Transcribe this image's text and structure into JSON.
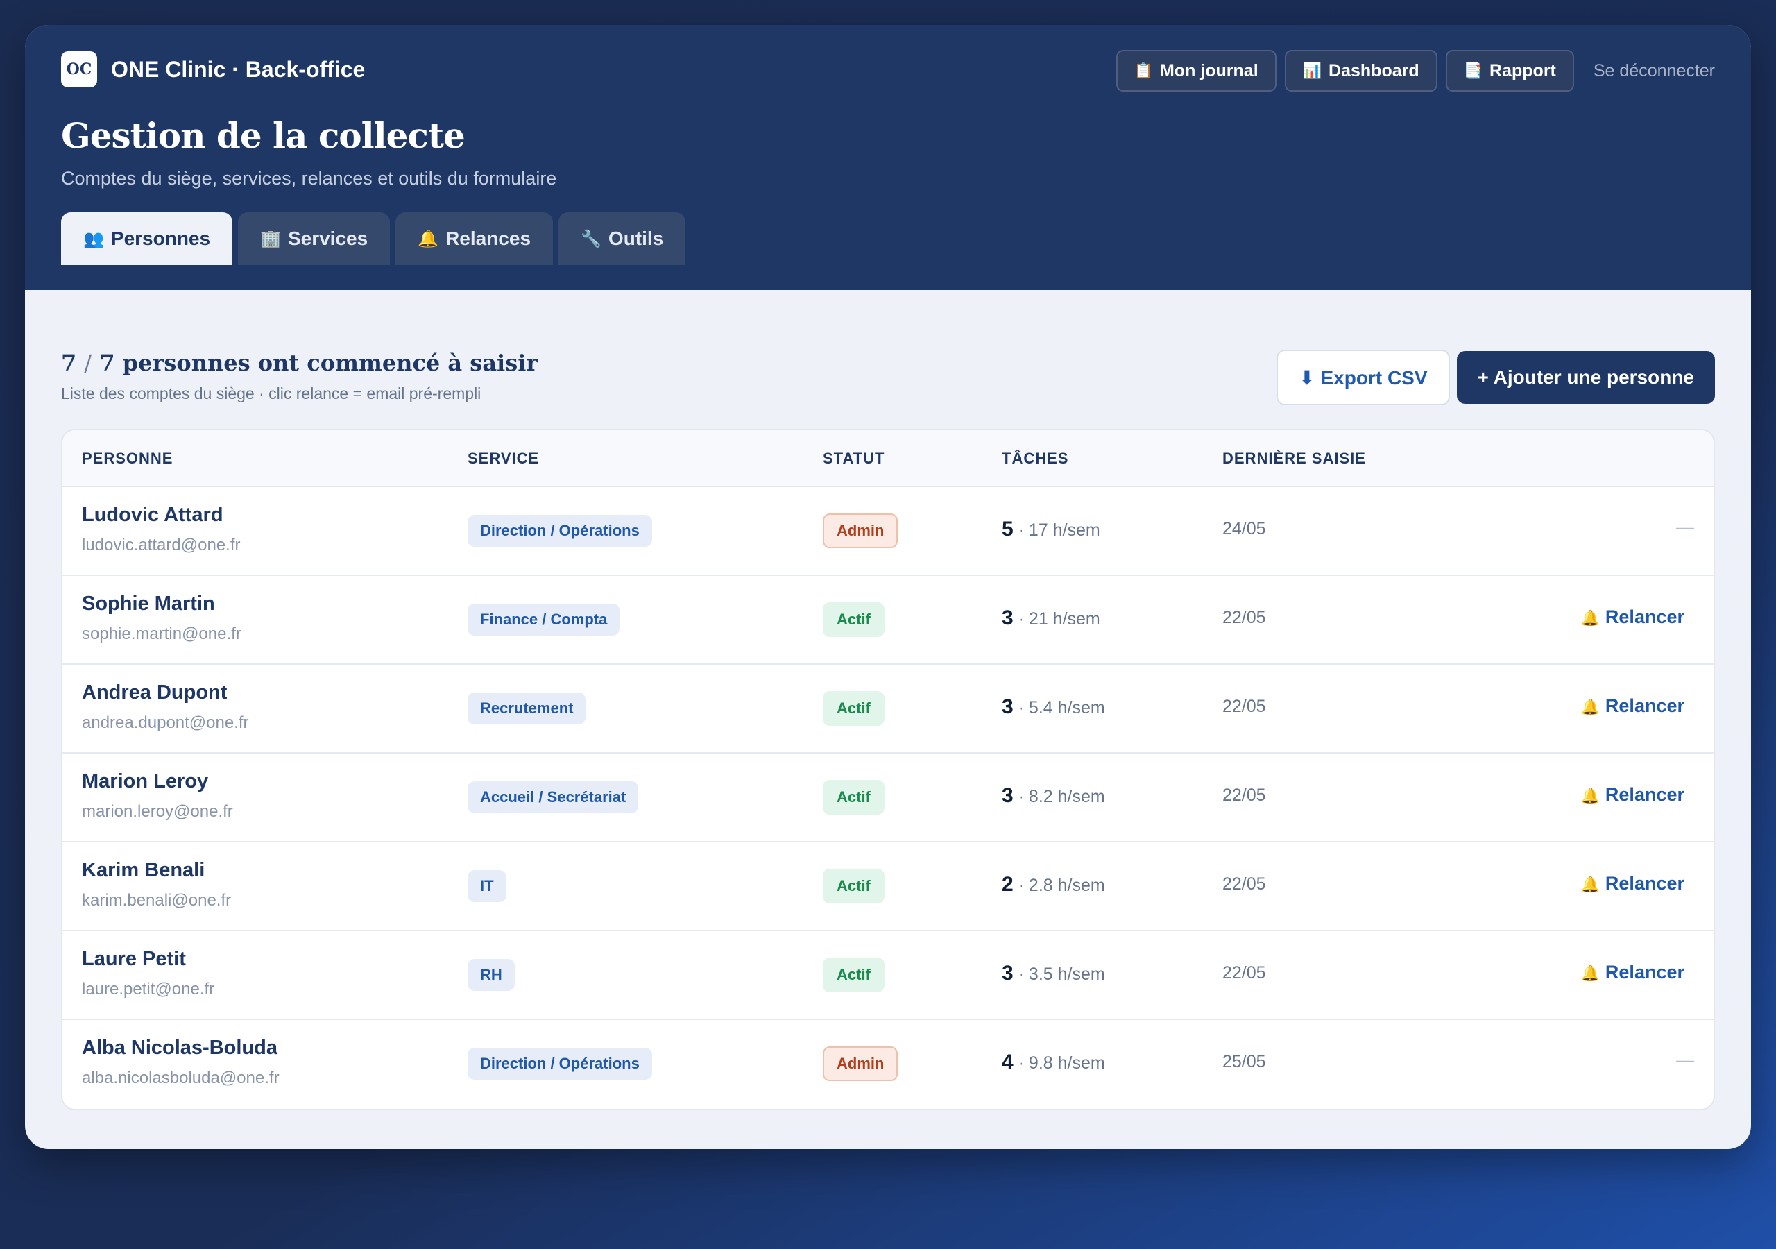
{
  "app": {
    "logo_text": "OC",
    "name": "ONE Clinic · Back-office"
  },
  "nav": {
    "journal": {
      "icon": "clipboard-icon",
      "label": "Mon journal"
    },
    "dashboard": {
      "icon": "bar-chart-icon",
      "label": "Dashboard"
    },
    "rapport": {
      "icon": "document-icon",
      "label": "Rapport"
    },
    "logout": "Se déconnecter"
  },
  "page": {
    "title": "Gestion de la collecte",
    "subtitle": "Comptes du siège, services, relances et outils du formulaire"
  },
  "tabs": [
    {
      "icon": "people-icon",
      "label": "Personnes",
      "active": true
    },
    {
      "icon": "building-icon",
      "label": "Services",
      "active": false
    },
    {
      "icon": "bell-icon",
      "label": "Relances",
      "active": false
    },
    {
      "icon": "wrench-icon",
      "label": "Outils",
      "active": false
    }
  ],
  "summary": {
    "started": "7",
    "separator": "/",
    "total": "7",
    "label": "personnes ont commencé à saisir",
    "subtitle": "Liste des comptes du siège · clic relance = email pré-rempli"
  },
  "actions": {
    "export": "⬇ Export CSV",
    "add": "+ Ajouter une personne"
  },
  "table": {
    "headers": {
      "person": "PERSONNE",
      "service": "SERVICE",
      "status": "STATUT",
      "tasks": "TÂCHES",
      "last": "DERNIÈRE SAISIE"
    },
    "relancer_label": "Relancer",
    "dash": "—",
    "rows": [
      {
        "name": "Ludovic Attard",
        "email": "ludovic.attard@one.fr",
        "service": "Direction / Opérations",
        "status": "Admin",
        "tasks": "5",
        "hours": "· 17 h/sem",
        "last": "24/05"
      },
      {
        "name": "Sophie Martin",
        "email": "sophie.martin@one.fr",
        "service": "Finance / Compta",
        "status": "Actif",
        "tasks": "3",
        "hours": "· 21 h/sem",
        "last": "22/05"
      },
      {
        "name": "Andrea Dupont",
        "email": "andrea.dupont@one.fr",
        "service": "Recrutement",
        "status": "Actif",
        "tasks": "3",
        "hours": "· 5.4 h/sem",
        "last": "22/05"
      },
      {
        "name": "Marion Leroy",
        "email": "marion.leroy@one.fr",
        "service": "Accueil / Secrétariat",
        "status": "Actif",
        "tasks": "3",
        "hours": "· 8.2 h/sem",
        "last": "22/05"
      },
      {
        "name": "Karim Benali",
        "email": "karim.benali@one.fr",
        "service": "IT",
        "status": "Actif",
        "tasks": "2",
        "hours": "· 2.8 h/sem",
        "last": "22/05"
      },
      {
        "name": "Laure Petit",
        "email": "laure.petit@one.fr",
        "service": "RH",
        "status": "Actif",
        "tasks": "3",
        "hours": "· 3.5 h/sem",
        "last": "22/05"
      },
      {
        "name": "Alba Nicolas-Boluda",
        "email": "alba.nicolasboluda@one.fr",
        "service": "Direction / Opérations",
        "status": "Admin",
        "tasks": "4",
        "hours": "· 9.8 h/sem",
        "last": "25/05"
      }
    ]
  }
}
